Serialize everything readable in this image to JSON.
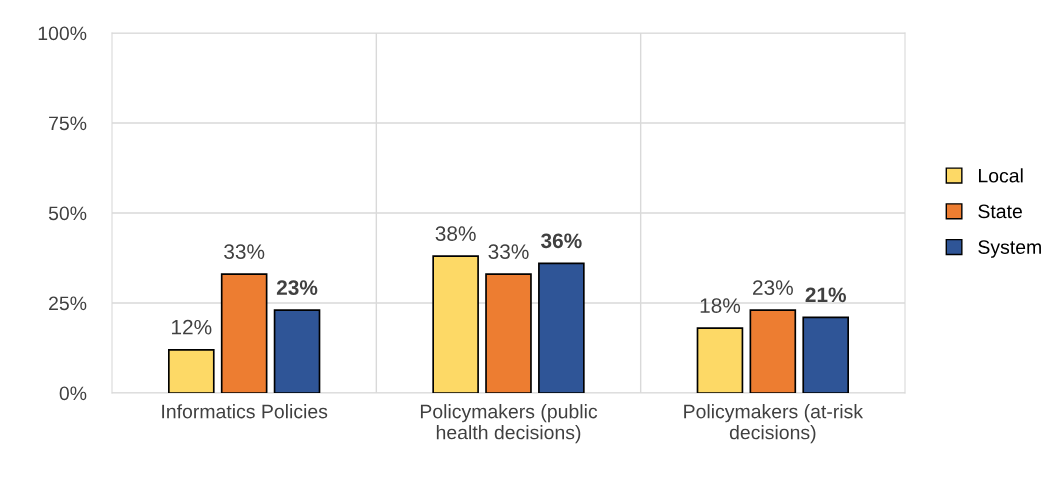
{
  "chart_data": {
    "type": "bar",
    "categories": [
      "Informatics Policies",
      "Policymakers (public\nhealth decisions)",
      "Policymakers (at-risk\ndecisions)"
    ],
    "series": [
      {
        "name": "Local",
        "color": "#fdd966",
        "values": [
          12,
          38,
          18
        ],
        "value_labels": [
          "12%",
          "38%",
          "18%"
        ]
      },
      {
        "name": "State",
        "color": "#ed7d31",
        "values": [
          33,
          33,
          23
        ],
        "value_labels": [
          "33%",
          "33%",
          "23%"
        ]
      },
      {
        "name": "System",
        "color": "#2f5597",
        "values": [
          23,
          36,
          21
        ],
        "value_labels": [
          "23%",
          "36%",
          "21%"
        ]
      }
    ],
    "ylim": [
      0,
      100
    ],
    "yticks": [
      {
        "value": 0,
        "label": "0%"
      },
      {
        "value": 25,
        "label": "25%"
      },
      {
        "value": 50,
        "label": "50%"
      },
      {
        "value": 75,
        "label": "75%"
      },
      {
        "value": 100,
        "label": "100%"
      }
    ],
    "grid": true,
    "legend": "right"
  }
}
